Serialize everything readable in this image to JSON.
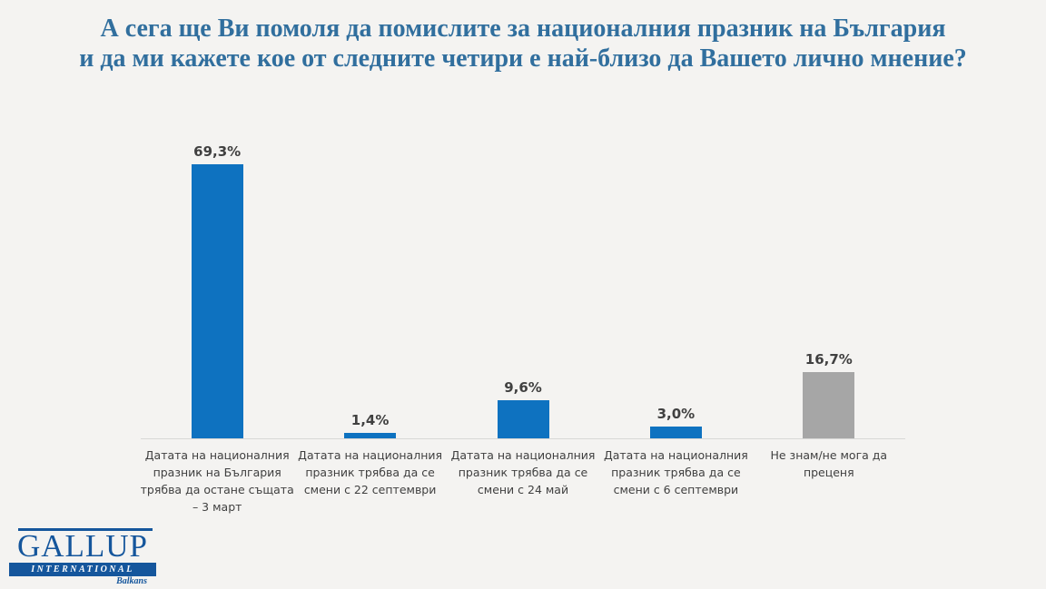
{
  "title": {
    "line1": "А сега ще Ви помоля да помислите за националния празник на България",
    "line2": "и да ми кажете кое от следните четири е най-близо да Вашето лично мнение?"
  },
  "chart_data": {
    "type": "bar",
    "categories": [
      "Датата на националния празник на България трябва да остане същата – 3 март",
      "Датата на националния празник трябва да се смени с 22 септември",
      "Датата на националния празник трябва да се смени с 24 май",
      "Датата на националния празник трябва да се смени с 6 септември",
      "Не знам/не мога да преценя"
    ],
    "values": [
      69.3,
      1.4,
      9.6,
      3.0,
      16.7
    ],
    "value_labels": [
      "69,3%",
      "1,4%",
      "9,6%",
      "3,0%",
      "16,7%"
    ],
    "bar_colors": [
      "#0e72c0",
      "#0e72c0",
      "#0e72c0",
      "#0e72c0",
      "#a6a6a6"
    ],
    "title": "",
    "xlabel": "",
    "ylabel": "",
    "ylim": [
      0,
      75
    ],
    "grid": false,
    "legend": false
  },
  "colors": {
    "background": "#f4f3f1",
    "title_text": "#316f9e",
    "bar_blue": "#0e72c0",
    "bar_gray": "#a6a6a6",
    "label_text": "#404040",
    "axis_line": "#d8d8d6",
    "logo_blue": "#15569c"
  },
  "logo": {
    "name": "GALLUP",
    "subtitle": "INTERNATIONAL",
    "region": "Balkans"
  }
}
